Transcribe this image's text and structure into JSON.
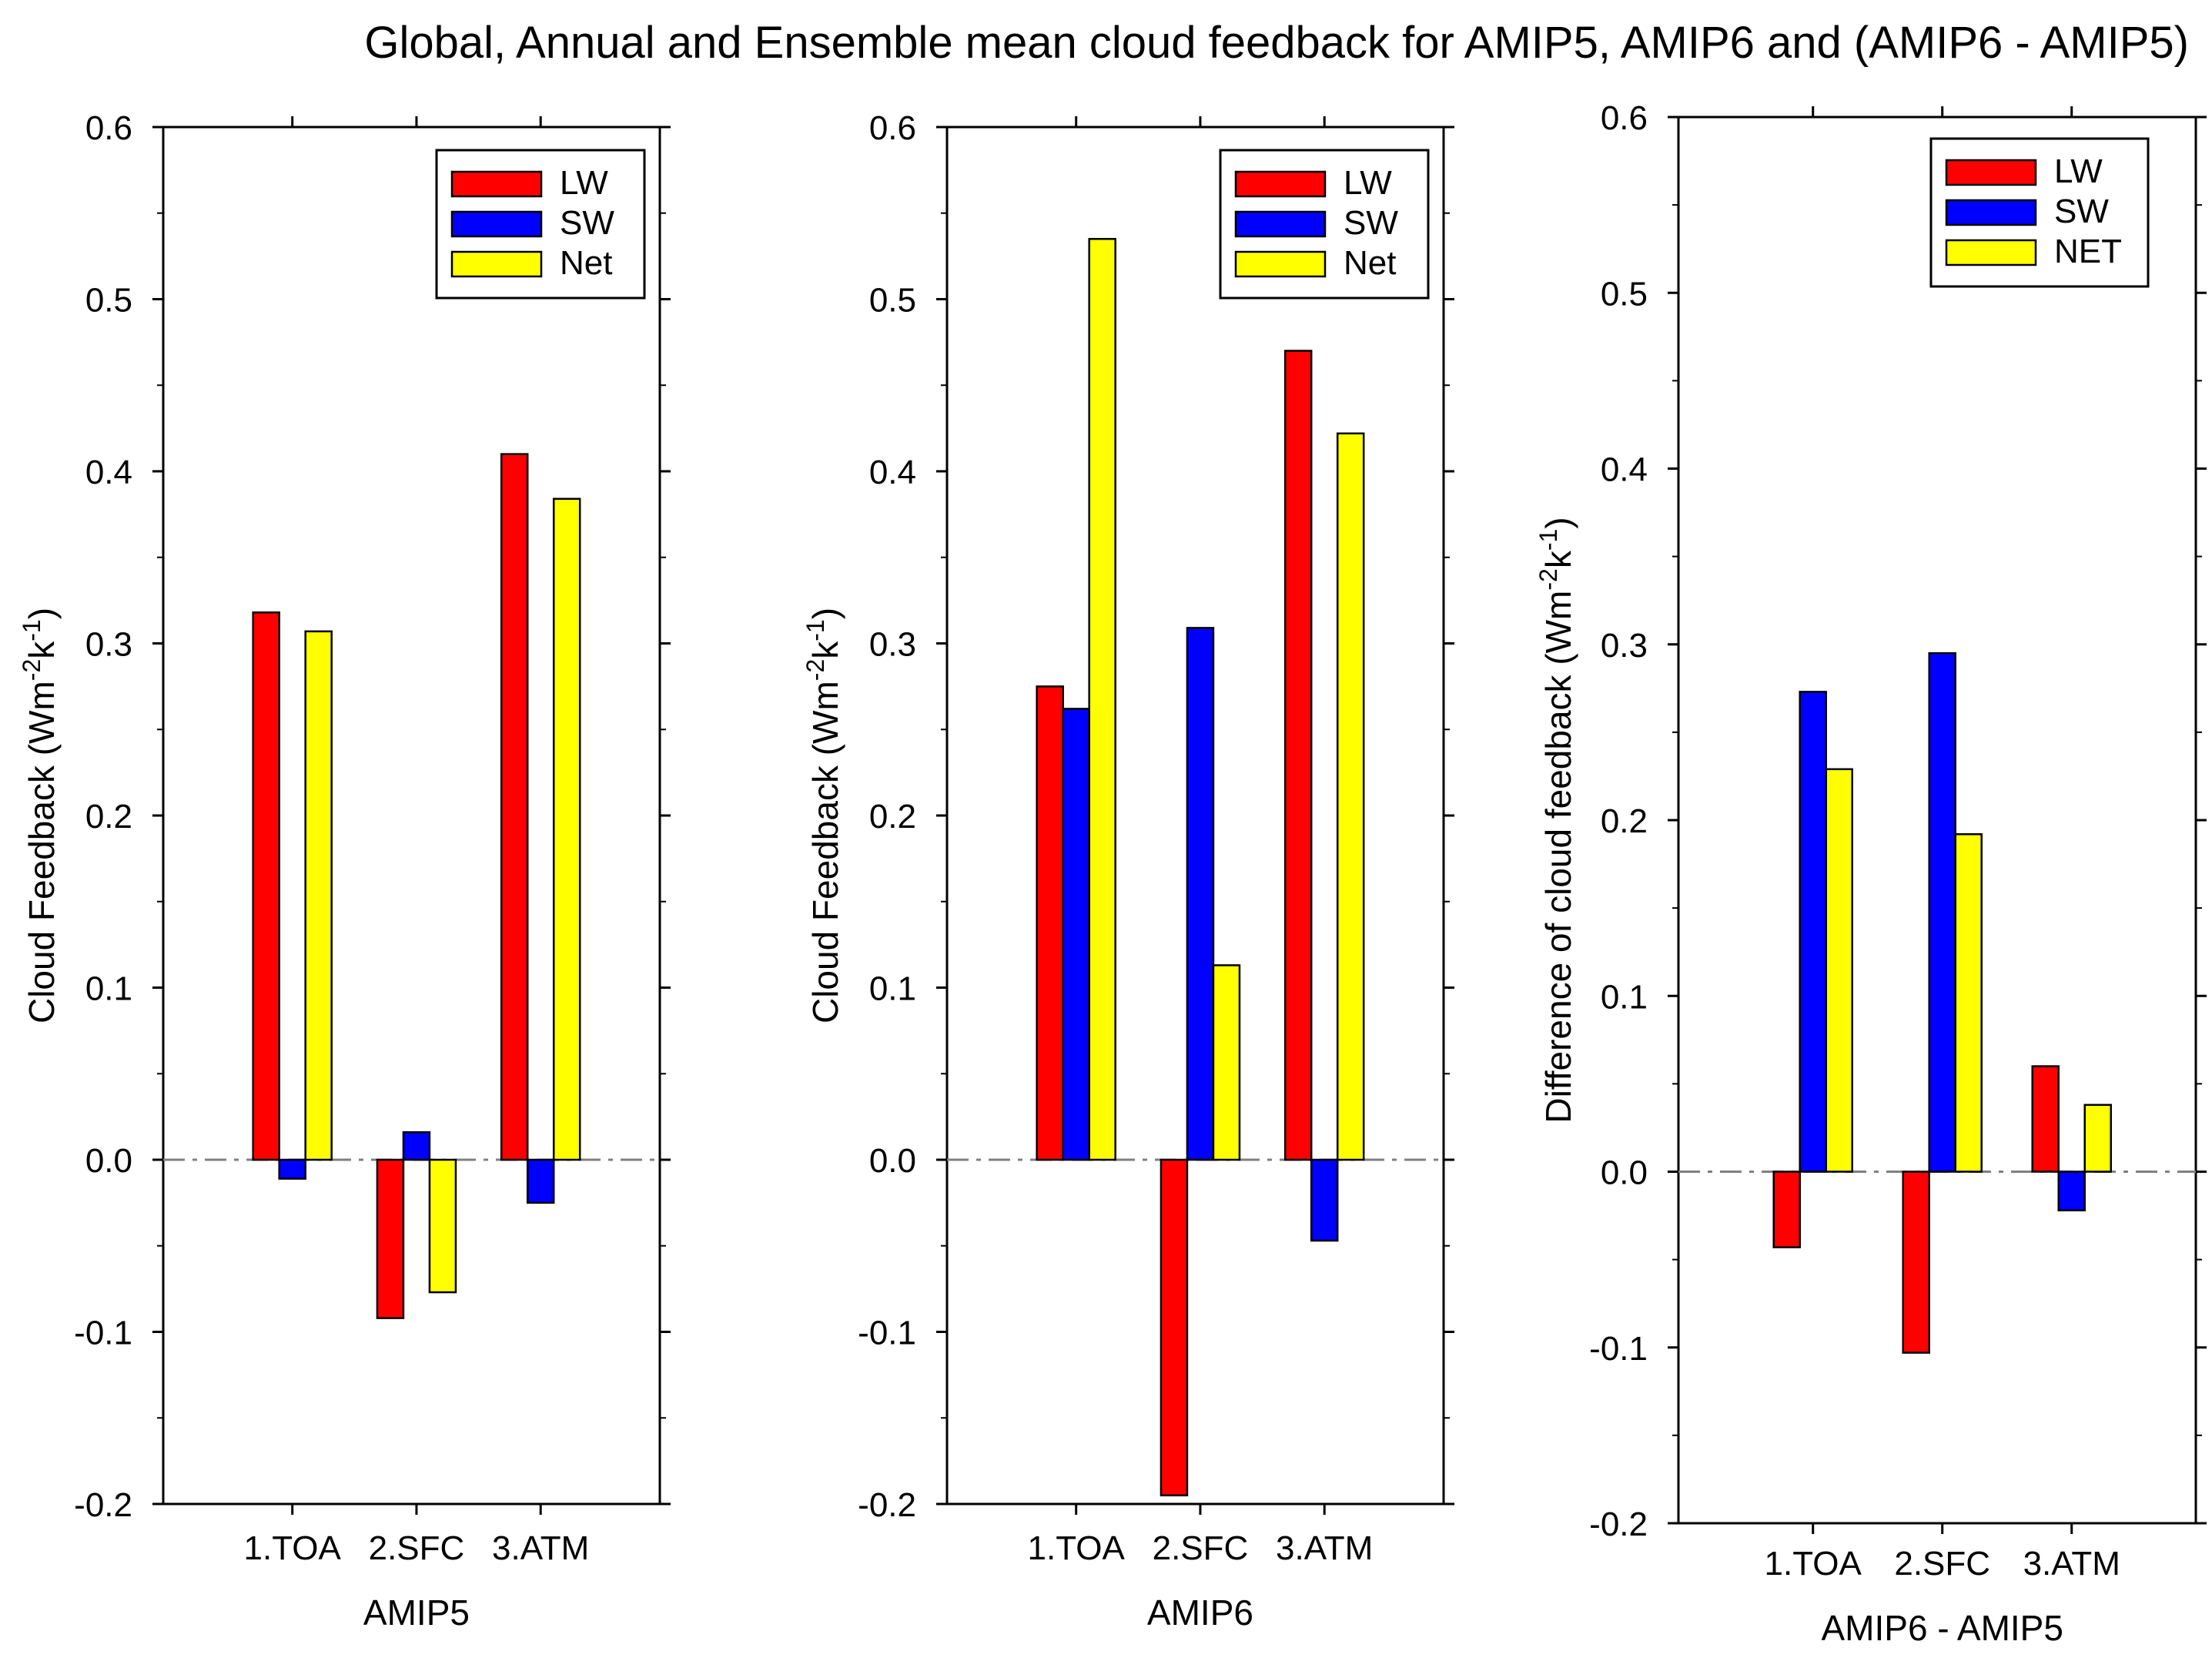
{
  "figure": {
    "title": "Global, Annual and Ensemble mean cloud feedback for AMIP5, AMIP6 and (AMIP6 - AMIP5)"
  },
  "chart_data": [
    {
      "type": "bar",
      "categories": [
        "1.TOA",
        "2.SFC",
        "3.ATM"
      ],
      "series": [
        {
          "name": "LW",
          "color": "#ff0000",
          "values": [
            0.318,
            -0.092,
            0.41
          ]
        },
        {
          "name": "SW",
          "color": "#0000ff",
          "values": [
            -0.011,
            0.016,
            -0.025
          ]
        },
        {
          "name": "Net",
          "color": "#ffff00",
          "values": [
            0.307,
            -0.077,
            0.384
          ]
        }
      ],
      "xlabel": "AMIP5",
      "ylabel_main": "Cloud Feedback (Wm",
      "ylabel_sup1": "-2",
      "ylabel_mid": "k",
      "ylabel_sup2": "-1",
      "ylabel_end": ")",
      "ylim": [
        -0.2,
        0.6
      ],
      "yticks": [
        "-0.2",
        "-0.1",
        "0.0",
        "0.1",
        "0.2",
        "0.3",
        "0.4",
        "0.5",
        "0.6"
      ],
      "legend_position": "top-right",
      "zero_line": true
    },
    {
      "type": "bar",
      "categories": [
        "1.TOA",
        "2.SFC",
        "3.ATM"
      ],
      "series": [
        {
          "name": "LW",
          "color": "#ff0000",
          "values": [
            0.275,
            -0.195,
            0.47
          ]
        },
        {
          "name": "SW",
          "color": "#0000ff",
          "values": [
            0.262,
            0.309,
            -0.047
          ]
        },
        {
          "name": "Net",
          "color": "#ffff00",
          "values": [
            0.535,
            0.113,
            0.422
          ]
        }
      ],
      "xlabel": "AMIP6",
      "ylabel_main": "Cloud Feedback (Wm",
      "ylabel_sup1": "-2",
      "ylabel_mid": "k",
      "ylabel_sup2": "-1",
      "ylabel_end": ")",
      "ylim": [
        -0.2,
        0.6
      ],
      "yticks": [
        "-0.2",
        "-0.1",
        "0.0",
        "0.1",
        "0.2",
        "0.3",
        "0.4",
        "0.5",
        "0.6"
      ],
      "legend_position": "top-right",
      "zero_line": true
    },
    {
      "type": "bar",
      "categories": [
        "1.TOA",
        "2.SFC",
        "3.ATM"
      ],
      "series": [
        {
          "name": "LW",
          "color": "#ff0000",
          "values": [
            -0.043,
            -0.103,
            0.06
          ]
        },
        {
          "name": "SW",
          "color": "#0000ff",
          "values": [
            0.273,
            0.295,
            -0.022
          ]
        },
        {
          "name": "NET",
          "color": "#ffff00",
          "values": [
            0.229,
            0.192,
            0.038
          ]
        }
      ],
      "xlabel": "AMIP6 - AMIP5",
      "ylabel_main": "Difference of cloud feedback (Wm",
      "ylabel_sup1": "-2",
      "ylabel_mid": "k",
      "ylabel_sup2": "-1",
      "ylabel_end": ")",
      "ylim": [
        -0.2,
        0.6
      ],
      "yticks": [
        "-0.2",
        "-0.1",
        "0.0",
        "0.1",
        "0.2",
        "0.3",
        "0.4",
        "0.5",
        "0.6"
      ],
      "legend_position": "top-right",
      "zero_line": true
    }
  ]
}
